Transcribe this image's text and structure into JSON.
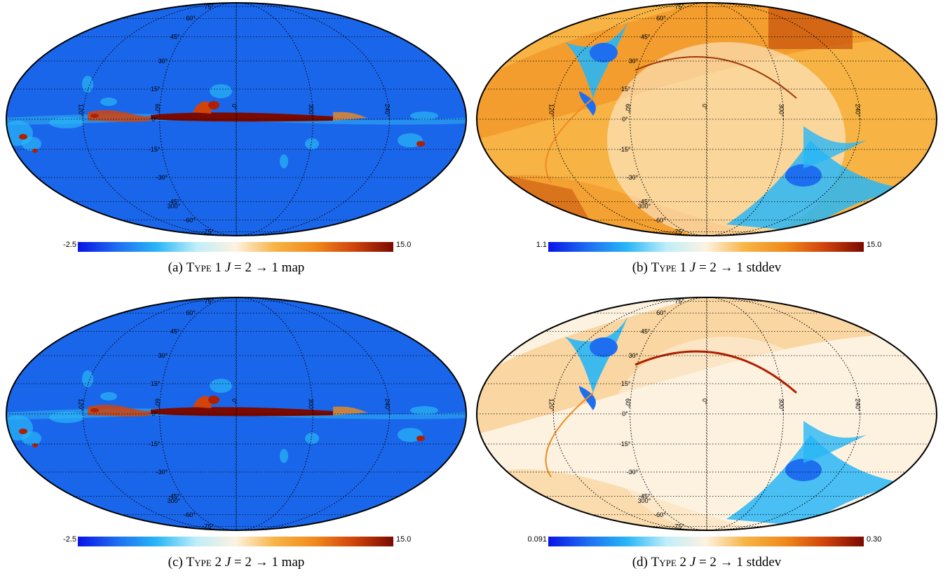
{
  "panels": [
    {
      "id": "a",
      "kind": "map",
      "caption_prefix": "(a)",
      "caption_type": "Type",
      "caption_num": "1",
      "caption_J": "J",
      "caption_eq": "= 2 → 1",
      "caption_suffix": "map",
      "cbar_min": "-2.5",
      "cbar_max": "15.0"
    },
    {
      "id": "b",
      "kind": "stddev",
      "caption_prefix": "(b)",
      "caption_type": "Type",
      "caption_num": "1",
      "caption_J": "J",
      "caption_eq": "= 2 → 1",
      "caption_suffix": "stddev",
      "cbar_min": "1.1",
      "cbar_max": "15.0"
    },
    {
      "id": "c",
      "kind": "map",
      "caption_prefix": "(c)",
      "caption_type": "Type",
      "caption_num": "2",
      "caption_J": "J",
      "caption_eq": "= 2 → 1",
      "caption_suffix": "map",
      "cbar_min": "-2.5",
      "cbar_max": "15.0"
    },
    {
      "id": "d",
      "kind": "stddev2",
      "caption_prefix": "(d)",
      "caption_type": "Type",
      "caption_num": "2",
      "caption_J": "J",
      "caption_eq": "= 2 → 1",
      "caption_suffix": "stddev",
      "cbar_min": "0.091",
      "cbar_max": "0.30"
    }
  ],
  "grid_labels": {
    "latitudes": [
      "75°",
      "60°",
      "45°",
      "30°",
      "15°",
      "0°",
      "-15°",
      "-30°",
      "-45°",
      "-60°",
      "-75°"
    ],
    "longitudes": [
      "120°",
      "60°",
      "0°",
      "300°",
      "240°"
    ],
    "bottom_lon": "300°"
  },
  "colors": {
    "cmap": [
      "#0a14e6",
      "#1e6ef0",
      "#29b6f6",
      "#bfeefa",
      "#fdf2e0",
      "#f7b445",
      "#f08a1c",
      "#d0440c",
      "#7a0a00"
    ],
    "ellipse_stroke": "#000000",
    "grid": "#000000"
  }
}
